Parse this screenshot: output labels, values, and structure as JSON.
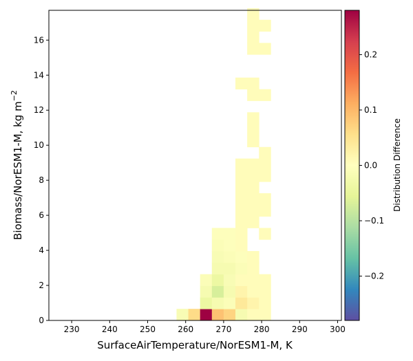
{
  "chart_data": {
    "type": "heatmap",
    "xlabel": "SurfaceAirTemperature/NorESM1-M,  K",
    "ylabel": "Biomass/NorESM1-M,  kg m",
    "ylabel_sup": "−2",
    "x_ticks": [
      230,
      240,
      250,
      260,
      270,
      280,
      290,
      300
    ],
    "y_ticks": [
      0,
      2,
      4,
      6,
      8,
      10,
      12,
      14,
      16
    ],
    "xlim": [
      224,
      301
    ],
    "ylim": [
      0,
      17.7
    ],
    "bin_width_x": 3.1,
    "bin_height_y": 0.66,
    "colorbar": {
      "label": "Distribution Difference",
      "range": [
        -0.28,
        0.28
      ],
      "ticks": [
        -0.2,
        -0.1,
        0.0,
        0.1,
        0.2
      ],
      "tick_labels": [
        "−0.2",
        "−0.1",
        "0.0",
        "0.1",
        "0.2"
      ],
      "colormap": "Spectral_r"
    },
    "cells": [
      {
        "x0": 257.6,
        "y0": 0.0,
        "value": -0.015
      },
      {
        "x0": 260.7,
        "y0": 0.0,
        "value": 0.06
      },
      {
        "x0": 263.8,
        "y0": 0.0,
        "value": 0.28
      },
      {
        "x0": 266.9,
        "y0": 0.0,
        "value": 0.09
      },
      {
        "x0": 270.0,
        "y0": 0.0,
        "value": 0.07
      },
      {
        "x0": 273.1,
        "y0": 0.0,
        "value": -0.02
      },
      {
        "x0": 276.2,
        "y0": 0.0,
        "value": 0.005
      },
      {
        "x0": 279.3,
        "y0": 0.0,
        "value": 0.005
      },
      {
        "x0": 263.8,
        "y0": 0.66,
        "value": -0.04
      },
      {
        "x0": 266.9,
        "y0": 0.66,
        "value": -0.02
      },
      {
        "x0": 270.0,
        "y0": 0.66,
        "value": -0.01
      },
      {
        "x0": 273.1,
        "y0": 0.66,
        "value": 0.04
      },
      {
        "x0": 276.2,
        "y0": 0.66,
        "value": 0.02
      },
      {
        "x0": 279.3,
        "y0": 0.66,
        "value": 0.005
      },
      {
        "x0": 263.8,
        "y0": 1.32,
        "value": -0.02
      },
      {
        "x0": 266.9,
        "y0": 1.32,
        "value": -0.07
      },
      {
        "x0": 270.0,
        "y0": 1.32,
        "value": -0.02
      },
      {
        "x0": 273.1,
        "y0": 1.32,
        "value": 0.02
      },
      {
        "x0": 276.2,
        "y0": 1.32,
        "value": 0.005
      },
      {
        "x0": 279.3,
        "y0": 1.32,
        "value": 0.005
      },
      {
        "x0": 263.8,
        "y0": 1.98,
        "value": -0.01
      },
      {
        "x0": 266.9,
        "y0": 1.98,
        "value": -0.04
      },
      {
        "x0": 270.0,
        "y0": 1.98,
        "value": -0.015
      },
      {
        "x0": 273.1,
        "y0": 1.98,
        "value": 0.005
      },
      {
        "x0": 276.2,
        "y0": 1.98,
        "value": 0.005
      },
      {
        "x0": 279.3,
        "y0": 1.98,
        "value": 0.005
      },
      {
        "x0": 266.9,
        "y0": 2.64,
        "value": -0.02
      },
      {
        "x0": 270.0,
        "y0": 2.64,
        "value": -0.02
      },
      {
        "x0": 273.1,
        "y0": 2.64,
        "value": -0.01
      },
      {
        "x0": 276.2,
        "y0": 2.64,
        "value": 0.005
      },
      {
        "x0": 266.9,
        "y0": 3.3,
        "value": -0.015
      },
      {
        "x0": 270.0,
        "y0": 3.3,
        "value": -0.01
      },
      {
        "x0": 273.1,
        "y0": 3.3,
        "value": -0.005
      },
      {
        "x0": 276.2,
        "y0": 3.3,
        "value": 0.005
      },
      {
        "x0": 266.9,
        "y0": 3.96,
        "value": -0.01
      },
      {
        "x0": 270.0,
        "y0": 3.96,
        "value": -0.005
      },
      {
        "x0": 273.1,
        "y0": 3.96,
        "value": 0.005
      },
      {
        "x0": 266.9,
        "y0": 4.62,
        "value": -0.005
      },
      {
        "x0": 270.0,
        "y0": 4.62,
        "value": -0.005
      },
      {
        "x0": 273.1,
        "y0": 4.62,
        "value": 0.005
      },
      {
        "x0": 279.3,
        "y0": 4.62,
        "value": 0.005
      },
      {
        "x0": 273.1,
        "y0": 5.28,
        "value": 0.005
      },
      {
        "x0": 276.2,
        "y0": 5.28,
        "value": 0.005
      },
      {
        "x0": 273.1,
        "y0": 5.94,
        "value": 0.005
      },
      {
        "x0": 276.2,
        "y0": 5.94,
        "value": 0.005
      },
      {
        "x0": 279.3,
        "y0": 5.94,
        "value": 0.005
      },
      {
        "x0": 273.1,
        "y0": 6.6,
        "value": 0.005
      },
      {
        "x0": 276.2,
        "y0": 6.6,
        "value": 0.005
      },
      {
        "x0": 279.3,
        "y0": 6.6,
        "value": 0.005
      },
      {
        "x0": 273.1,
        "y0": 7.26,
        "value": 0.005
      },
      {
        "x0": 276.2,
        "y0": 7.26,
        "value": 0.005
      },
      {
        "x0": 273.1,
        "y0": 7.92,
        "value": 0.005
      },
      {
        "x0": 276.2,
        "y0": 7.92,
        "value": 0.005
      },
      {
        "x0": 279.3,
        "y0": 7.92,
        "value": 0.005
      },
      {
        "x0": 273.1,
        "y0": 8.58,
        "value": 0.005
      },
      {
        "x0": 276.2,
        "y0": 8.58,
        "value": 0.005
      },
      {
        "x0": 279.3,
        "y0": 8.58,
        "value": 0.005
      },
      {
        "x0": 279.3,
        "y0": 9.24,
        "value": 0.005
      },
      {
        "x0": 276.2,
        "y0": 9.9,
        "value": 0.005
      },
      {
        "x0": 276.2,
        "y0": 10.56,
        "value": 0.005
      },
      {
        "x0": 276.2,
        "y0": 11.22,
        "value": 0.005
      },
      {
        "x0": 276.2,
        "y0": 12.54,
        "value": 0.005
      },
      {
        "x0": 279.3,
        "y0": 12.54,
        "value": 0.005
      },
      {
        "x0": 273.1,
        "y0": 13.2,
        "value": 0.005
      },
      {
        "x0": 276.2,
        "y0": 13.2,
        "value": 0.005
      },
      {
        "x0": 276.2,
        "y0": 15.18,
        "value": 0.005
      },
      {
        "x0": 279.3,
        "y0": 15.18,
        "value": 0.005
      },
      {
        "x0": 276.2,
        "y0": 15.84,
        "value": 0.005
      },
      {
        "x0": 276.2,
        "y0": 16.5,
        "value": 0.005
      },
      {
        "x0": 279.3,
        "y0": 16.5,
        "value": 0.005
      },
      {
        "x0": 276.2,
        "y0": 17.16,
        "value": 0.005
      }
    ]
  }
}
